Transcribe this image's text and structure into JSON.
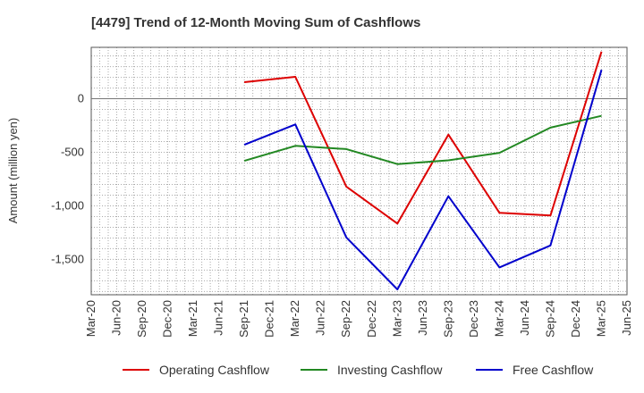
{
  "chart_data": {
    "type": "line",
    "title": "[4479]  Trend of 12-Month Moving Sum of Cashflows",
    "xlabel": "",
    "ylabel": "Amount (million yen)",
    "x_ticks": [
      "Mar-20",
      "Jun-20",
      "Sep-20",
      "Dec-20",
      "Mar-21",
      "Jun-21",
      "Sep-21",
      "Dec-21",
      "Mar-22",
      "Jun-22",
      "Sep-22",
      "Dec-22",
      "Mar-23",
      "Jun-23",
      "Sep-23",
      "Dec-23",
      "Mar-24",
      "Jun-24",
      "Sep-24",
      "Dec-24",
      "Mar-25",
      "Jun-25"
    ],
    "y_ticks": [
      -1500,
      -1000,
      -500,
      0
    ],
    "y_tick_labels": [
      "-1,500",
      "-1,000",
      "-500",
      "0"
    ],
    "ylim": [
      -1830,
      480
    ],
    "grid": true,
    "legend_position": "bottom",
    "series": [
      {
        "name": "Operating Cashflow",
        "color": "#dd0000",
        "points": [
          {
            "x": "Sep-21",
            "y": 155
          },
          {
            "x": "Mar-22",
            "y": 205
          },
          {
            "x": "Sep-22",
            "y": -820
          },
          {
            "x": "Mar-23",
            "y": -1165
          },
          {
            "x": "Sep-23",
            "y": -335
          },
          {
            "x": "Mar-24",
            "y": -1065
          },
          {
            "x": "Sep-24",
            "y": -1090
          },
          {
            "x": "Mar-25",
            "y": 440
          }
        ]
      },
      {
        "name": "Investing Cashflow",
        "color": "#228822",
        "points": [
          {
            "x": "Sep-21",
            "y": -580
          },
          {
            "x": "Mar-22",
            "y": -440
          },
          {
            "x": "Sep-22",
            "y": -470
          },
          {
            "x": "Mar-23",
            "y": -610
          },
          {
            "x": "Sep-23",
            "y": -575
          },
          {
            "x": "Mar-24",
            "y": -505
          },
          {
            "x": "Sep-24",
            "y": -270
          },
          {
            "x": "Mar-25",
            "y": -160
          }
        ]
      },
      {
        "name": "Free Cashflow",
        "color": "#0000cc",
        "points": [
          {
            "x": "Sep-21",
            "y": -430
          },
          {
            "x": "Mar-22",
            "y": -240
          },
          {
            "x": "Sep-22",
            "y": -1295
          },
          {
            "x": "Mar-23",
            "y": -1780
          },
          {
            "x": "Sep-23",
            "y": -910
          },
          {
            "x": "Mar-24",
            "y": -1575
          },
          {
            "x": "Sep-24",
            "y": -1370
          },
          {
            "x": "Mar-25",
            "y": 270
          }
        ]
      }
    ]
  }
}
